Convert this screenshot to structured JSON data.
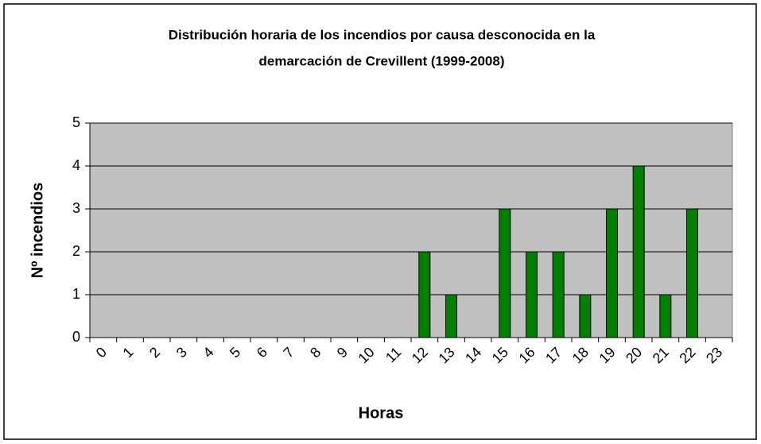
{
  "chart_data": {
    "type": "bar",
    "title": [
      "Distribución horaria de los incendios por causa desconocida en la",
      "demarcación de Crevillent (1999-2008)"
    ],
    "xlabel": "Horas",
    "ylabel": "Nº incendios",
    "categories": [
      "0",
      "1",
      "2",
      "3",
      "4",
      "5",
      "6",
      "7",
      "8",
      "9",
      "10",
      "11",
      "12",
      "13",
      "14",
      "15",
      "16",
      "17",
      "18",
      "19",
      "20",
      "21",
      "22",
      "23"
    ],
    "values": [
      0,
      0,
      0,
      0,
      0,
      0,
      0,
      0,
      0,
      0,
      0,
      0,
      2,
      1,
      0,
      3,
      2,
      2,
      1,
      3,
      4,
      1,
      3,
      0
    ],
    "color": "#008000",
    "ylim": [
      0,
      5
    ],
    "yticks": [
      0,
      1,
      2,
      3,
      4,
      5
    ],
    "grid": true
  }
}
